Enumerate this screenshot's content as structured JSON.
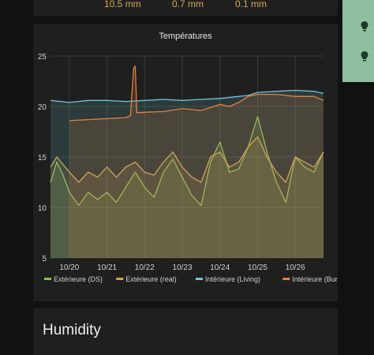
{
  "top": {
    "rain": [
      "10.5 mm",
      "0.7 mm",
      "0.1 mm"
    ]
  },
  "sidebar": {
    "icons": [
      "lightbulb-icon",
      "lightbulb-icon"
    ],
    "bg": "#8fbf9e"
  },
  "next_card": {
    "title": "Humidity"
  },
  "chart_data": {
    "type": "line",
    "title": "Températures",
    "ylim": [
      5,
      25
    ],
    "yticks": [
      "5",
      "10",
      "15",
      "20",
      "25"
    ],
    "xlim": [
      "2023-10-19T12:00",
      "2023-10-26T18:00"
    ],
    "xticks": [
      {
        "t": "2023-10-20T00:00",
        "label": "10/20"
      },
      {
        "t": "2023-10-21T00:00",
        "label": "10/21"
      },
      {
        "t": "2023-10-22T00:00",
        "label": "10/22"
      },
      {
        "t": "2023-10-23T00:00",
        "label": "10/23"
      },
      {
        "t": "2023-10-24T00:00",
        "label": "10/24"
      },
      {
        "t": "2023-10-25T00:00",
        "label": "10/25"
      },
      {
        "t": "2023-10-26T00:00",
        "label": "10/26"
      }
    ],
    "grid": true,
    "legend": "bottom",
    "series": [
      {
        "name": "Extérieure (DS)",
        "color": "#8bc34a",
        "x": [
          "2023-10-19T12:00",
          "2023-10-19T16:00",
          "2023-10-19T20:00",
          "2023-10-20T00:00",
          "2023-10-20T06:00",
          "2023-10-20T12:00",
          "2023-10-20T18:00",
          "2023-10-21T00:00",
          "2023-10-21T06:00",
          "2023-10-21T12:00",
          "2023-10-21T18:00",
          "2023-10-22T00:00",
          "2023-10-22T06:00",
          "2023-10-22T12:00",
          "2023-10-22T18:00",
          "2023-10-23T00:00",
          "2023-10-23T06:00",
          "2023-10-23T12:00",
          "2023-10-23T18:00",
          "2023-10-24T00:00",
          "2023-10-24T06:00",
          "2023-10-24T12:00",
          "2023-10-24T18:00",
          "2023-10-25T00:00",
          "2023-10-25T06:00",
          "2023-10-25T12:00",
          "2023-10-25T18:00",
          "2023-10-26T00:00",
          "2023-10-26T06:00",
          "2023-10-26T12:00",
          "2023-10-26T18:00"
        ],
        "y": [
          12.5,
          14.5,
          13.2,
          11.5,
          10.2,
          11.5,
          10.8,
          11.5,
          10.5,
          12.0,
          13.5,
          12.0,
          11.0,
          13.5,
          14.8,
          13.0,
          11.2,
          10.2,
          14.5,
          16.5,
          13.5,
          13.8,
          16.0,
          19.0,
          15.5,
          12.5,
          10.5,
          15.0,
          14.0,
          13.5,
          15.5
        ]
      },
      {
        "name": "Extérieure (real)",
        "color": "#d7a84a",
        "x": [
          "2023-10-19T12:00",
          "2023-10-19T16:00",
          "2023-10-20T00:00",
          "2023-10-20T06:00",
          "2023-10-20T12:00",
          "2023-10-20T18:00",
          "2023-10-21T00:00",
          "2023-10-21T06:00",
          "2023-10-21T12:00",
          "2023-10-21T18:00",
          "2023-10-22T00:00",
          "2023-10-22T06:00",
          "2023-10-22T12:00",
          "2023-10-22T18:00",
          "2023-10-23T00:00",
          "2023-10-23T06:00",
          "2023-10-23T12:00",
          "2023-10-23T18:00",
          "2023-10-24T00:00",
          "2023-10-24T06:00",
          "2023-10-24T12:00",
          "2023-10-24T18:00",
          "2023-10-25T00:00",
          "2023-10-25T06:00",
          "2023-10-25T12:00",
          "2023-10-25T18:00",
          "2023-10-26T00:00",
          "2023-10-26T06:00",
          "2023-10-26T12:00",
          "2023-10-26T18:00"
        ],
        "y": [
          14.0,
          15.0,
          13.5,
          12.5,
          13.5,
          13.0,
          14.0,
          13.0,
          14.0,
          14.5,
          13.5,
          13.2,
          14.5,
          15.5,
          14.0,
          13.0,
          12.5,
          15.0,
          15.5,
          14.0,
          14.5,
          16.0,
          17.0,
          15.0,
          13.5,
          12.5,
          15.0,
          14.5,
          14.0,
          15.5
        ]
      },
      {
        "name": "Intérieure (Living)",
        "color": "#6ec6d6",
        "x": [
          "2023-10-19T12:00",
          "2023-10-20T00:00",
          "2023-10-20T12:00",
          "2023-10-21T00:00",
          "2023-10-21T12:00",
          "2023-10-22T00:00",
          "2023-10-22T12:00",
          "2023-10-23T00:00",
          "2023-10-23T12:00",
          "2023-10-24T00:00",
          "2023-10-24T12:00",
          "2023-10-24T18:00",
          "2023-10-25T00:00",
          "2023-10-25T12:00",
          "2023-10-26T00:00",
          "2023-10-26T12:00",
          "2023-10-26T18:00"
        ],
        "y": [
          20.6,
          20.4,
          20.6,
          20.6,
          20.5,
          20.6,
          20.7,
          20.6,
          20.7,
          20.8,
          21.0,
          21.1,
          21.4,
          21.5,
          21.6,
          21.5,
          21.3
        ]
      },
      {
        "name": "Intérieure (Bureau)",
        "color": "#e8823a",
        "x": [
          "2023-10-20T00:00",
          "2023-10-20T12:00",
          "2023-10-21T00:00",
          "2023-10-21T12:00",
          "2023-10-21T15:00",
          "2023-10-21T17:00",
          "2023-10-21T18:00",
          "2023-10-21T19:00",
          "2023-10-22T12:00",
          "2023-10-23T00:00",
          "2023-10-23T12:00",
          "2023-10-24T00:00",
          "2023-10-24T06:00",
          "2023-10-24T12:00",
          "2023-10-24T18:00",
          "2023-10-25T00:00",
          "2023-10-25T12:00",
          "2023-10-26T00:00",
          "2023-10-26T12:00",
          "2023-10-26T18:00"
        ],
        "y": [
          18.6,
          18.7,
          18.8,
          18.9,
          19.1,
          23.8,
          24.0,
          19.4,
          19.5,
          19.8,
          19.6,
          20.2,
          20.0,
          20.4,
          21.0,
          21.2,
          21.2,
          21.0,
          21.0,
          20.6
        ]
      }
    ]
  }
}
